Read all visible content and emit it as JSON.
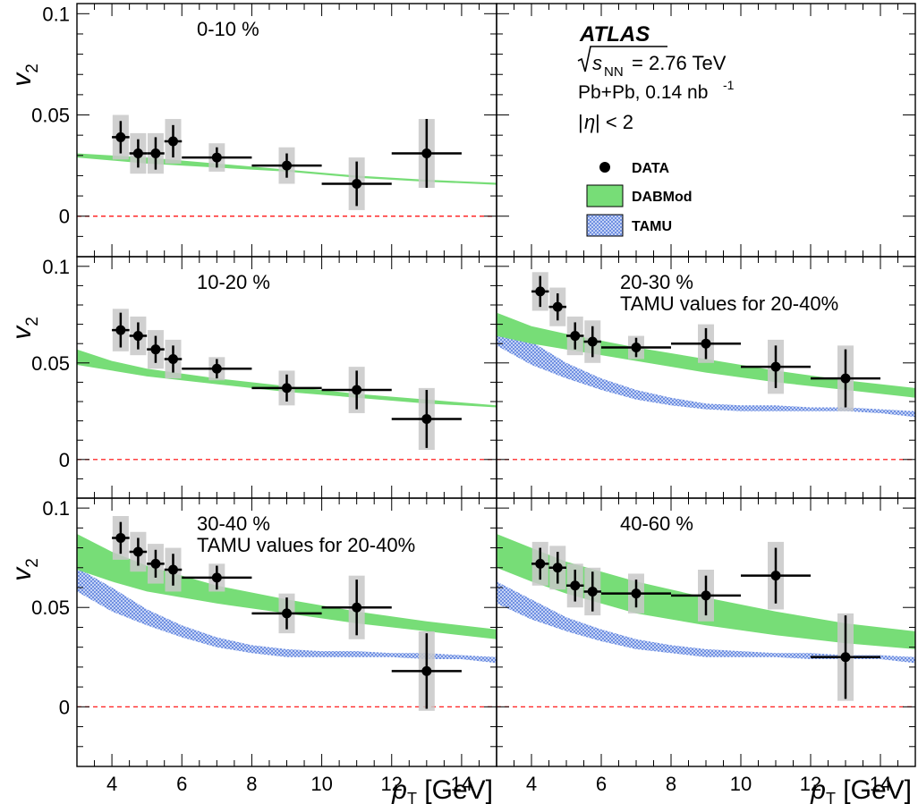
{
  "experiment": {
    "name": "ATLAS",
    "energy_prefix": "s",
    "energy_sub": "NN",
    "energy_value": " = 2.76 TeV",
    "system": "Pb+Pb, 0.14 nb",
    "system_sup": "-1",
    "eta_cut_prefix": "|",
    "eta_symbol": "η",
    "eta_cut_suffix": "| < 2"
  },
  "legend": {
    "data": "DATA",
    "dabmod": "DABMod",
    "tamu": "TAMU"
  },
  "colors": {
    "dabmod_band": "#77dd77",
    "tamu_band": "#8aa6e8",
    "syst_box": "#c8c8c8",
    "zero_line": "#ff0000"
  },
  "chart_data": [
    {
      "type": "scatter",
      "label": "0-10 %",
      "sublabel": "",
      "ylabel_main": "v",
      "ylabel_sub": "2",
      "xlabel_main": "",
      "xlabel_sub": "",
      "xlabel_unit": "",
      "xlim": [
        3,
        15
      ],
      "ylim": [
        -0.02,
        0.105
      ],
      "xticks": [],
      "yticks": [
        0,
        0.05,
        0.1
      ],
      "ytick_labels": [
        "0",
        "0.05",
        "0.1"
      ],
      "points": [
        {
          "x": 4.25,
          "xlo": 4.0,
          "xhi": 4.5,
          "y": 0.039,
          "stat": 0.008,
          "syst": 0.011
        },
        {
          "x": 4.75,
          "xlo": 4.5,
          "xhi": 5.0,
          "y": 0.031,
          "stat": 0.007,
          "syst": 0.01
        },
        {
          "x": 5.25,
          "xlo": 5.0,
          "xhi": 5.5,
          "y": 0.031,
          "stat": 0.008,
          "syst": 0.01
        },
        {
          "x": 5.75,
          "xlo": 5.5,
          "xhi": 6.0,
          "y": 0.037,
          "stat": 0.008,
          "syst": 0.011
        },
        {
          "x": 7.0,
          "xlo": 6.0,
          "xhi": 8.0,
          "y": 0.029,
          "stat": 0.005,
          "syst": 0.007
        },
        {
          "x": 9.0,
          "xlo": 8.0,
          "xhi": 10.0,
          "y": 0.025,
          "stat": 0.006,
          "syst": 0.009
        },
        {
          "x": 11.0,
          "xlo": 10.0,
          "xhi": 12.0,
          "y": 0.016,
          "stat": 0.011,
          "syst": 0.013
        },
        {
          "x": 13.0,
          "xlo": 12.0,
          "xhi": 14.0,
          "y": 0.031,
          "stat": 0.017,
          "syst": 0.017
        }
      ],
      "dabmod": {
        "x": [
          3,
          5,
          7,
          9,
          11,
          13,
          15
        ],
        "lo": [
          0.029,
          0.026,
          0.024,
          0.022,
          0.019,
          0.017,
          0.0155
        ],
        "hi": [
          0.031,
          0.029,
          0.026,
          0.023,
          0.02,
          0.018,
          0.0165
        ]
      },
      "tamu": null
    },
    {
      "type": "legend-panel",
      "xlim": [
        3,
        15
      ],
      "ylim": [
        -0.02,
        0.105
      ]
    },
    {
      "type": "scatter",
      "label": "10-20 %",
      "sublabel": "",
      "ylabel_main": "v",
      "ylabel_sub": "2",
      "xlabel_main": "",
      "xlabel_sub": "",
      "xlabel_unit": "",
      "xlim": [
        3,
        15
      ],
      "ylim": [
        -0.02,
        0.105
      ],
      "xticks": [],
      "yticks": [
        0,
        0.05,
        0.1
      ],
      "ytick_labels": [
        "0",
        "0.05",
        "0.1"
      ],
      "points": [
        {
          "x": 4.25,
          "xlo": 4.0,
          "xhi": 4.5,
          "y": 0.067,
          "stat": 0.009,
          "syst": 0.011
        },
        {
          "x": 4.75,
          "xlo": 4.5,
          "xhi": 5.0,
          "y": 0.064,
          "stat": 0.007,
          "syst": 0.01
        },
        {
          "x": 5.25,
          "xlo": 5.0,
          "xhi": 5.5,
          "y": 0.057,
          "stat": 0.007,
          "syst": 0.01
        },
        {
          "x": 5.75,
          "xlo": 5.5,
          "xhi": 6.0,
          "y": 0.052,
          "stat": 0.007,
          "syst": 0.01
        },
        {
          "x": 7.0,
          "xlo": 6.0,
          "xhi": 8.0,
          "y": 0.047,
          "stat": 0.005,
          "syst": 0.006
        },
        {
          "x": 9.0,
          "xlo": 8.0,
          "xhi": 10.0,
          "y": 0.037,
          "stat": 0.007,
          "syst": 0.009
        },
        {
          "x": 11.0,
          "xlo": 10.0,
          "xhi": 12.0,
          "y": 0.036,
          "stat": 0.01,
          "syst": 0.012
        },
        {
          "x": 13.0,
          "xlo": 12.0,
          "xhi": 14.0,
          "y": 0.021,
          "stat": 0.015,
          "syst": 0.016
        }
      ],
      "dabmod": {
        "x": [
          3,
          4,
          5,
          7,
          9,
          11,
          13,
          15
        ],
        "lo": [
          0.049,
          0.046,
          0.043,
          0.039,
          0.035,
          0.032,
          0.029,
          0.027
        ],
        "hi": [
          0.057,
          0.051,
          0.047,
          0.042,
          0.038,
          0.034,
          0.031,
          0.028
        ]
      },
      "tamu": null
    },
    {
      "type": "scatter",
      "label": "20-30 %",
      "sublabel": "TAMU values for 20-40%",
      "xlim": [
        3,
        15
      ],
      "ylim": [
        -0.02,
        0.105
      ],
      "xticks": [],
      "yticks": [
        0,
        0.05,
        0.1
      ],
      "ytick_labels": [],
      "points": [
        {
          "x": 4.25,
          "xlo": 4.0,
          "xhi": 4.5,
          "y": 0.087,
          "stat": 0.008,
          "syst": 0.01
        },
        {
          "x": 4.75,
          "xlo": 4.5,
          "xhi": 5.0,
          "y": 0.079,
          "stat": 0.007,
          "syst": 0.01
        },
        {
          "x": 5.25,
          "xlo": 5.0,
          "xhi": 5.5,
          "y": 0.064,
          "stat": 0.007,
          "syst": 0.01
        },
        {
          "x": 5.75,
          "xlo": 5.5,
          "xhi": 6.0,
          "y": 0.061,
          "stat": 0.008,
          "syst": 0.011
        },
        {
          "x": 7.0,
          "xlo": 6.0,
          "xhi": 8.0,
          "y": 0.058,
          "stat": 0.005,
          "syst": 0.006
        },
        {
          "x": 9.0,
          "xlo": 8.0,
          "xhi": 10.0,
          "y": 0.06,
          "stat": 0.008,
          "syst": 0.01
        },
        {
          "x": 11.0,
          "xlo": 10.0,
          "xhi": 12.0,
          "y": 0.048,
          "stat": 0.011,
          "syst": 0.014
        },
        {
          "x": 13.0,
          "xlo": 12.0,
          "xhi": 14.0,
          "y": 0.042,
          "stat": 0.015,
          "syst": 0.017
        }
      ],
      "dabmod": {
        "x": [
          3,
          4,
          5,
          7,
          9,
          11,
          13,
          15
        ],
        "lo": [
          0.064,
          0.06,
          0.057,
          0.051,
          0.045,
          0.04,
          0.036,
          0.032
        ],
        "hi": [
          0.076,
          0.069,
          0.065,
          0.058,
          0.052,
          0.046,
          0.041,
          0.037
        ]
      },
      "tamu": {
        "x": [
          3,
          4,
          5,
          6,
          7,
          8,
          9,
          10,
          11,
          12,
          13,
          14,
          15
        ],
        "lo": [
          0.059,
          0.049,
          0.042,
          0.036,
          0.031,
          0.028,
          0.026,
          0.025,
          0.025,
          0.025,
          0.025,
          0.024,
          0.022
        ],
        "hi": [
          0.071,
          0.061,
          0.05,
          0.042,
          0.036,
          0.032,
          0.029,
          0.028,
          0.028,
          0.027,
          0.027,
          0.026,
          0.025
        ]
      }
    },
    {
      "type": "scatter",
      "label": "30-40 %",
      "sublabel": "TAMU values for 20-40%",
      "ylabel_main": "v",
      "ylabel_sub": "2",
      "xlabel_main": "p",
      "xlabel_sub": "T",
      "xlabel_unit": " [GeV]",
      "xlim": [
        3,
        15
      ],
      "ylim": [
        -0.03,
        0.105
      ],
      "xticks": [
        4,
        6,
        8,
        10,
        12,
        14
      ],
      "yticks": [
        0,
        0.05,
        0.1
      ],
      "ytick_labels": [
        "0",
        "0.05",
        "0.1"
      ],
      "points": [
        {
          "x": 4.25,
          "xlo": 4.0,
          "xhi": 4.5,
          "y": 0.085,
          "stat": 0.008,
          "syst": 0.011
        },
        {
          "x": 4.75,
          "xlo": 4.5,
          "xhi": 5.0,
          "y": 0.078,
          "stat": 0.007,
          "syst": 0.01
        },
        {
          "x": 5.25,
          "xlo": 5.0,
          "xhi": 5.5,
          "y": 0.072,
          "stat": 0.007,
          "syst": 0.01
        },
        {
          "x": 5.75,
          "xlo": 5.5,
          "xhi": 6.0,
          "y": 0.069,
          "stat": 0.008,
          "syst": 0.011
        },
        {
          "x": 7.0,
          "xlo": 6.0,
          "xhi": 8.0,
          "y": 0.065,
          "stat": 0.006,
          "syst": 0.007
        },
        {
          "x": 9.0,
          "xlo": 8.0,
          "xhi": 10.0,
          "y": 0.047,
          "stat": 0.008,
          "syst": 0.01
        },
        {
          "x": 11.0,
          "xlo": 10.0,
          "xhi": 12.0,
          "y": 0.05,
          "stat": 0.014,
          "syst": 0.016
        },
        {
          "x": 13.0,
          "xlo": 12.0,
          "xhi": 14.0,
          "y": 0.018,
          "stat": 0.019,
          "syst": 0.02
        }
      ],
      "dabmod": {
        "x": [
          3,
          4,
          5,
          7,
          9,
          11,
          13,
          15
        ],
        "lo": [
          0.069,
          0.063,
          0.058,
          0.052,
          0.047,
          0.042,
          0.038,
          0.034
        ],
        "hi": [
          0.087,
          0.078,
          0.071,
          0.061,
          0.054,
          0.048,
          0.043,
          0.039
        ]
      },
      "tamu": {
        "x": [
          3,
          4,
          5,
          6,
          7,
          8,
          9,
          10,
          11,
          12,
          13,
          14,
          15
        ],
        "lo": [
          0.058,
          0.048,
          0.041,
          0.035,
          0.03,
          0.027,
          0.025,
          0.025,
          0.025,
          0.025,
          0.024,
          0.024,
          0.022
        ],
        "hi": [
          0.07,
          0.06,
          0.049,
          0.041,
          0.035,
          0.031,
          0.029,
          0.028,
          0.028,
          0.027,
          0.027,
          0.026,
          0.025
        ]
      }
    },
    {
      "type": "scatter",
      "label": "40-60 %",
      "sublabel": "",
      "xlabel_main": "p",
      "xlabel_sub": "T",
      "xlabel_unit": " [GeV]",
      "xlim": [
        3,
        15
      ],
      "ylim": [
        -0.03,
        0.105
      ],
      "xticks": [
        4,
        6,
        8,
        10,
        12,
        14
      ],
      "yticks": [
        0,
        0.05,
        0.1
      ],
      "ytick_labels": [],
      "points": [
        {
          "x": 4.25,
          "xlo": 4.0,
          "xhi": 4.5,
          "y": 0.072,
          "stat": 0.008,
          "syst": 0.011
        },
        {
          "x": 4.75,
          "xlo": 4.5,
          "xhi": 5.0,
          "y": 0.07,
          "stat": 0.008,
          "syst": 0.011
        },
        {
          "x": 5.25,
          "xlo": 5.0,
          "xhi": 5.5,
          "y": 0.061,
          "stat": 0.008,
          "syst": 0.011
        },
        {
          "x": 5.75,
          "xlo": 5.5,
          "xhi": 6.0,
          "y": 0.058,
          "stat": 0.01,
          "syst": 0.012
        },
        {
          "x": 7.0,
          "xlo": 6.0,
          "xhi": 8.0,
          "y": 0.057,
          "stat": 0.007,
          "syst": 0.01
        },
        {
          "x": 9.0,
          "xlo": 8.0,
          "xhi": 10.0,
          "y": 0.056,
          "stat": 0.01,
          "syst": 0.013
        },
        {
          "x": 11.0,
          "xlo": 10.0,
          "xhi": 12.0,
          "y": 0.066,
          "stat": 0.014,
          "syst": 0.017
        },
        {
          "x": 13.0,
          "xlo": 12.0,
          "xhi": 14.0,
          "y": 0.025,
          "stat": 0.021,
          "syst": 0.022
        }
      ],
      "dabmod": {
        "x": [
          3,
          4,
          5,
          7,
          9,
          11,
          13,
          15
        ],
        "lo": [
          0.07,
          0.063,
          0.057,
          0.047,
          0.041,
          0.036,
          0.032,
          0.029
        ],
        "hi": [
          0.087,
          0.08,
          0.073,
          0.063,
          0.055,
          0.048,
          0.042,
          0.038
        ]
      },
      "tamu": {
        "x": [
          3,
          4,
          5,
          6,
          7,
          8,
          9,
          10,
          11,
          12,
          13,
          14,
          15
        ],
        "lo": [
          0.052,
          0.044,
          0.038,
          0.033,
          0.029,
          0.027,
          0.025,
          0.025,
          0.025,
          0.024,
          0.024,
          0.024,
          0.022
        ],
        "hi": [
          0.063,
          0.054,
          0.045,
          0.039,
          0.034,
          0.031,
          0.029,
          0.028,
          0.027,
          0.027,
          0.026,
          0.026,
          0.025
        ]
      }
    }
  ]
}
